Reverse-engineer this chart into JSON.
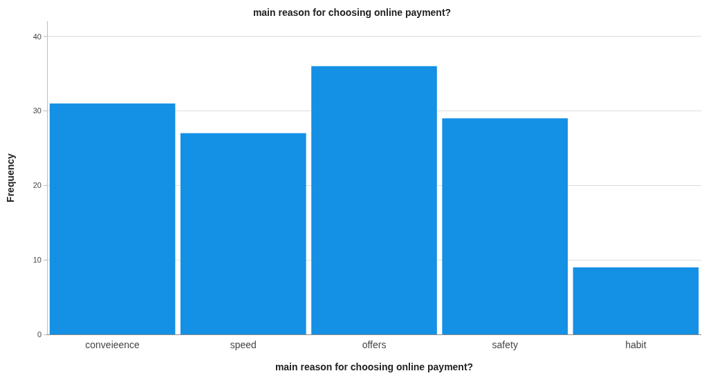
{
  "chart_data": {
    "type": "bar",
    "title": "main reason for choosing online payment?",
    "xlabel": "main reason for choosing online payment?",
    "ylabel": "Frequency",
    "categories": [
      "conveieence",
      "speed",
      "offers",
      "safety",
      "habit"
    ],
    "values": [
      31,
      27,
      36,
      29,
      9
    ],
    "color": "#1490e5",
    "ylim": [
      0,
      42
    ],
    "yticks": [
      0,
      10,
      20,
      30,
      40
    ],
    "grid": "y"
  }
}
